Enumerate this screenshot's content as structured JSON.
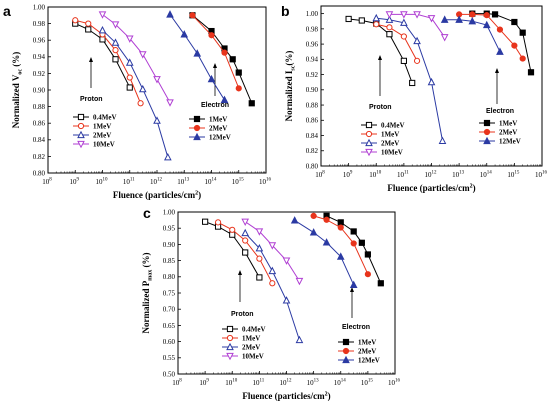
{
  "chart_data": [
    {
      "panel": "a",
      "type": "line",
      "x_scale": "log",
      "xlim": [
        100000000.0,
        1e+16
      ],
      "ylim": [
        0.8,
        1.0
      ],
      "y_ticks": [
        "0.80",
        "0.82",
        "0.84",
        "0.86",
        "0.88",
        "0.90",
        "0.92",
        "0.94",
        "0.96",
        "0.98",
        "1.00"
      ],
      "x_ticks": [
        {
          "base": "10",
          "exp": "8"
        },
        {
          "base": "10",
          "exp": "9"
        },
        {
          "base": "10",
          "exp": "10"
        },
        {
          "base": "10",
          "exp": "11"
        },
        {
          "base": "10",
          "exp": "12"
        },
        {
          "base": "10",
          "exp": "13"
        },
        {
          "base": "10",
          "exp": "14"
        },
        {
          "base": "10",
          "exp": "15"
        },
        {
          "base": "10",
          "exp": "16"
        }
      ],
      "xlabel": {
        "text": "Fluence (particles/cm",
        "sup": "2",
        "end": ")"
      },
      "ylabel": {
        "text": "Normalized V",
        "sub": "oc",
        "end": " (%)"
      },
      "annotations": [
        {
          "text": "Proton"
        },
        {
          "text": "Electron"
        }
      ],
      "series": [
        {
          "name": "0.4MeV",
          "color": "#000000",
          "marker": "square",
          "filled": false,
          "group": "proton",
          "x": [
            1000000000.0,
            3000000000.0,
            10000000000.0,
            30000000000.0,
            100000000000.0
          ],
          "y": [
            0.98,
            0.973,
            0.961,
            0.937,
            0.903
          ]
        },
        {
          "name": "1MeV",
          "color": "#e8341c",
          "marker": "circle",
          "filled": false,
          "group": "proton",
          "x": [
            1000000000.0,
            3000000000.0,
            10000000000.0,
            30000000000.0,
            100000000000.0,
            250000000000.0
          ],
          "y": [
            0.984,
            0.98,
            0.967,
            0.948,
            0.915,
            0.884
          ]
        },
        {
          "name": "2MeV",
          "color": "#2b3aa3",
          "marker": "triangle",
          "filled": false,
          "group": "proton",
          "x": [
            10000000000.0,
            30000000000.0,
            100000000000.0,
            300000000000.0,
            1000000000000.0,
            2500000000000.0
          ],
          "y": [
            0.972,
            0.957,
            0.933,
            0.901,
            0.863,
            0.819
          ]
        },
        {
          "name": "10MeV",
          "color": "#b03fd3",
          "marker": "triangle-down",
          "filled": false,
          "group": "proton",
          "x": [
            10000000000.0,
            30000000000.0,
            100000000000.0,
            300000000000.0,
            1000000000000.0,
            3000000000000.0
          ],
          "y": [
            0.991,
            0.979,
            0.962,
            0.943,
            0.913,
            0.885
          ]
        },
        {
          "name": "1MeV",
          "color": "#000000",
          "marker": "square",
          "filled": true,
          "group": "electron",
          "x": [
            20000000000000.0,
            100000000000000.0,
            300000000000000.0,
            600000000000000.0,
            1000000000000000.0,
            3000000000000000.0
          ],
          "y": [
            0.99,
            0.971,
            0.95,
            0.937,
            0.921,
            0.884
          ]
        },
        {
          "name": "2MeV",
          "color": "#e8341c",
          "marker": "circle",
          "filled": true,
          "group": "electron",
          "x": [
            20000000000000.0,
            100000000000000.0,
            300000000000000.0,
            1000000000000000.0
          ],
          "y": [
            0.99,
            0.966,
            0.945,
            0.902
          ]
        },
        {
          "name": "12MeV",
          "color": "#2b3aa3",
          "marker": "triangle",
          "filled": true,
          "group": "electron",
          "x": [
            3000000000000.0,
            10000000000000.0,
            30000000000000.0,
            100000000000000.0,
            300000000000000.0
          ],
          "y": [
            0.991,
            0.967,
            0.944,
            0.913,
            0.888
          ]
        }
      ]
    },
    {
      "panel": "b",
      "type": "line",
      "x_scale": "log",
      "xlim": [
        100000000.0,
        1e+16
      ],
      "ylim": [
        0.8,
        1.01
      ],
      "y_ticks": [
        "0.80",
        "0.82",
        "0.84",
        "0.86",
        "0.88",
        "0.90",
        "0.92",
        "0.94",
        "0.96",
        "0.98",
        "1.00"
      ],
      "x_ticks": [
        {
          "base": "10",
          "exp": "8"
        },
        {
          "base": "10",
          "exp": "9"
        },
        {
          "base": "10",
          "exp": "10"
        },
        {
          "base": "10",
          "exp": "11"
        },
        {
          "base": "10",
          "exp": "12"
        },
        {
          "base": "10",
          "exp": "13"
        },
        {
          "base": "10",
          "exp": "14"
        },
        {
          "base": "10",
          "exp": "15"
        },
        {
          "base": "10",
          "exp": "16"
        }
      ],
      "xlabel": {
        "text": "Fluence (particles/cm",
        "sup": "2",
        "end": ")"
      },
      "ylabel": {
        "text": "Normalized I",
        "sub": "sc",
        "end": "(%)"
      },
      "annotations": [
        {
          "text": "Proton"
        },
        {
          "text": "Electron"
        }
      ],
      "series": [
        {
          "name": "0.4MeV",
          "color": "#000000",
          "marker": "square",
          "filled": false,
          "group": "proton",
          "x": [
            1000000000.0,
            3000000000.0,
            10000000000.0,
            30000000000.0,
            100000000000.0,
            200000000000.0
          ],
          "y": [
            0.993,
            0.991,
            0.987,
            0.973,
            0.938,
            0.909
          ]
        },
        {
          "name": "1MeV",
          "color": "#e8341c",
          "marker": "circle",
          "filled": false,
          "group": "proton",
          "x": [
            10000000000.0,
            30000000000.0,
            100000000000.0,
            300000000000.0
          ],
          "y": [
            0.986,
            0.982,
            0.97,
            0.938
          ]
        },
        {
          "name": "2MeV",
          "color": "#2b3aa3",
          "marker": "triangle",
          "filled": false,
          "group": "proton",
          "x": [
            10000000000.0,
            30000000000.0,
            100000000000.0,
            300000000000.0,
            1000000000000.0,
            2500000000000.0
          ],
          "y": [
            0.994,
            0.992,
            0.988,
            0.964,
            0.91,
            0.833
          ]
        },
        {
          "name": "10MeV",
          "color": "#b03fd3",
          "marker": "triangle-down",
          "filled": false,
          "group": "proton",
          "x": [
            30000000000.0,
            100000000000.0,
            300000000000.0,
            1000000000000.0,
            3000000000000.0
          ],
          "y": [
            0.999,
            0.999,
            0.999,
            0.994,
            0.969
          ]
        },
        {
          "name": "1MeV",
          "color": "#000000",
          "marker": "square",
          "filled": true,
          "group": "electron",
          "x": [
            30000000000000.0,
            100000000000000.0,
            200000000000000.0,
            1000000000000000.0,
            2000000000000000.0,
            4000000000000000.0
          ],
          "y": [
            1.0,
            1.0,
            0.999,
            0.989,
            0.975,
            0.923
          ]
        },
        {
          "name": "2MeV",
          "color": "#e8341c",
          "marker": "circle",
          "filled": true,
          "group": "electron",
          "x": [
            10000000000000.0,
            30000000000000.0,
            100000000000000.0,
            300000000000000.0,
            1000000000000000.0,
            2000000000000000.0
          ],
          "y": [
            0.999,
            0.999,
            0.998,
            0.979,
            0.958,
            0.941
          ]
        },
        {
          "name": "12MeV",
          "color": "#2b3aa3",
          "marker": "triangle",
          "filled": true,
          "group": "electron",
          "x": [
            3000000000000.0,
            10000000000000.0,
            30000000000000.0,
            100000000000000.0,
            300000000000000.0
          ],
          "y": [
            0.992,
            0.992,
            0.99,
            0.985,
            0.95
          ]
        }
      ]
    },
    {
      "panel": "c",
      "type": "line",
      "x_scale": "log",
      "xlim": [
        100000000.0,
        1e+16
      ],
      "ylim": [
        0.5,
        1.0
      ],
      "y_ticks": [
        "0.50",
        "0.55",
        "0.60",
        "0.65",
        "0.70",
        "0.75",
        "0.80",
        "0.85",
        "0.90",
        "0.95",
        "1.00"
      ],
      "x_ticks": [
        {
          "base": "10",
          "exp": "8"
        },
        {
          "base": "10",
          "exp": "9"
        },
        {
          "base": "10",
          "exp": "10"
        },
        {
          "base": "10",
          "exp": "11"
        },
        {
          "base": "10",
          "exp": "12"
        },
        {
          "base": "10",
          "exp": "13"
        },
        {
          "base": "10",
          "exp": "14"
        },
        {
          "base": "10",
          "exp": "15"
        },
        {
          "base": "10",
          "exp": "16"
        }
      ],
      "xlabel": {
        "text": "Fluence (particles/cm",
        "sup": "2",
        "end": ")"
      },
      "ylabel": {
        "text": "Normalized P",
        "sub": "max",
        "end": " (%)"
      },
      "annotations": [
        {
          "text": "Proton"
        },
        {
          "text": "Electron"
        }
      ],
      "series": [
        {
          "name": "0.4MeV",
          "color": "#000000",
          "marker": "square",
          "filled": false,
          "group": "proton",
          "x": [
            1000000000.0,
            3000000000.0,
            10000000000.0,
            30000000000.0,
            100000000000.0
          ],
          "y": [
            0.97,
            0.955,
            0.93,
            0.875,
            0.798
          ]
        },
        {
          "name": "1MeV",
          "color": "#e8341c",
          "marker": "circle",
          "filled": false,
          "group": "proton",
          "x": [
            3000000000.0,
            10000000000.0,
            30000000000.0,
            100000000000.0,
            300000000000.0
          ],
          "y": [
            0.968,
            0.945,
            0.912,
            0.856,
            0.78
          ]
        },
        {
          "name": "2MeV",
          "color": "#2b3aa3",
          "marker": "triangle",
          "filled": false,
          "group": "proton",
          "x": [
            30000000000.0,
            100000000000.0,
            300000000000.0,
            1000000000000.0,
            3000000000000.0
          ],
          "y": [
            0.935,
            0.888,
            0.818,
            0.727,
            0.605
          ]
        },
        {
          "name": "10MeV",
          "color": "#b03fd3",
          "marker": "triangle-down",
          "filled": false,
          "group": "proton",
          "x": [
            30000000000.0,
            100000000000.0,
            300000000000.0,
            1000000000000.0,
            3000000000000.0
          ],
          "y": [
            0.97,
            0.94,
            0.897,
            0.85,
            0.787
          ]
        },
        {
          "name": "1MeV",
          "color": "#000000",
          "marker": "square",
          "filled": true,
          "group": "electron",
          "x": [
            30000000000000.0,
            100000000000000.0,
            300000000000000.0,
            600000000000000.0,
            1000000000000000.0,
            3000000000000000.0
          ],
          "y": [
            0.988,
            0.968,
            0.94,
            0.905,
            0.869,
            0.78
          ]
        },
        {
          "name": "2MeV",
          "color": "#e8341c",
          "marker": "circle",
          "filled": true,
          "group": "electron",
          "x": [
            10000000000000.0,
            30000000000000.0,
            100000000000000.0,
            300000000000000.0,
            1000000000000000.0
          ],
          "y": [
            0.988,
            0.976,
            0.952,
            0.903,
            0.808
          ]
        },
        {
          "name": "12MeV",
          "color": "#2b3aa3",
          "marker": "triangle",
          "filled": true,
          "group": "electron",
          "x": [
            2000000000000.0,
            10000000000000.0,
            30000000000000.0,
            100000000000000.0,
            300000000000000.0
          ],
          "y": [
            0.974,
            0.937,
            0.906,
            0.862,
            0.775
          ]
        }
      ]
    }
  ]
}
